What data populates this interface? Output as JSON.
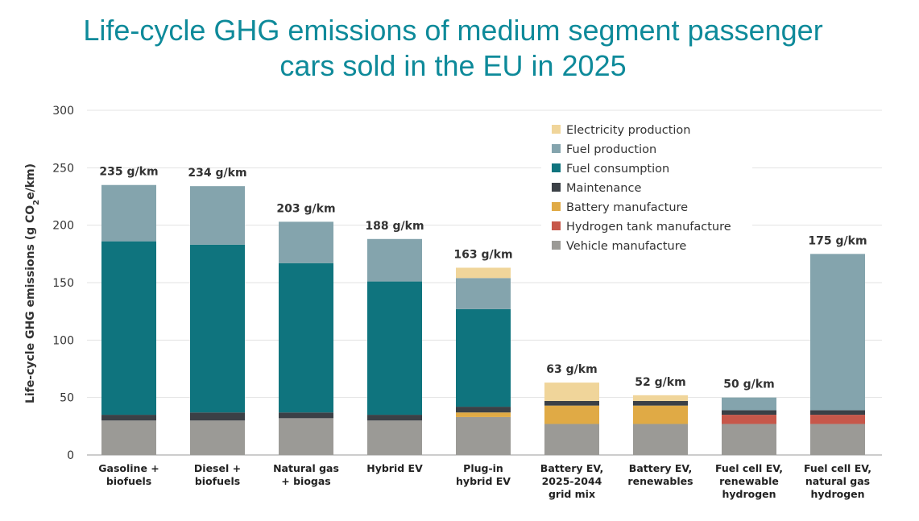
{
  "chart_data": {
    "type": "bar",
    "stacked": true,
    "title": "Life-cycle GHG emissions of medium segment passenger cars sold in the EU in 2025",
    "title_lines": [
      "Life-cycle GHG emissions of medium segment passenger",
      "cars sold in the EU in 2025"
    ],
    "ylabel": "Life-cycle GHG emissions (g CO2e/km)",
    "ylabel_parts": [
      "Life-cycle GHG emissions (g CO",
      "2",
      "e/km)"
    ],
    "ylim": [
      0,
      300
    ],
    "yticks": [
      0,
      50,
      100,
      150,
      200,
      250,
      300
    ],
    "grid": true,
    "legend_position": "top-right",
    "categories": [
      [
        "Gasoline +",
        "biofuels"
      ],
      [
        "Diesel +",
        "biofuels"
      ],
      [
        "Natural gas",
        "+ biogas"
      ],
      [
        "Hybrid EV"
      ],
      [
        "Plug-in",
        "hybrid EV"
      ],
      [
        "Battery EV,",
        "2025-2044",
        "grid mix"
      ],
      [
        "Battery EV,",
        "renewables"
      ],
      [
        "Fuel cell EV,",
        "renewable",
        "hydrogen"
      ],
      [
        "Fuel cell EV,",
        "natural gas",
        "hydrogen"
      ]
    ],
    "totals": [
      "235 g/km",
      "234 g/km",
      "203 g/km",
      "188 g/km",
      "163 g/km",
      "63 g/km",
      "52 g/km",
      "50 g/km",
      "175 g/km"
    ],
    "series": [
      {
        "name": "Vehicle manufacture",
        "color": "#9b9a96",
        "values": [
          30,
          30,
          32,
          30,
          33,
          27,
          27,
          27,
          27
        ]
      },
      {
        "name": "Hydrogen tank manufacture",
        "color": "#c7574a",
        "values": [
          0,
          0,
          0,
          0,
          0,
          0,
          0,
          8,
          8
        ]
      },
      {
        "name": "Battery manufacture",
        "color": "#e0aa45",
        "values": [
          0,
          0,
          0,
          0,
          4,
          16,
          16,
          0,
          0
        ]
      },
      {
        "name": "Maintenance",
        "color": "#3b4046",
        "values": [
          5,
          7,
          5,
          5,
          5,
          4,
          4,
          4,
          4
        ]
      },
      {
        "name": "Fuel consumption",
        "color": "#0f747e",
        "values": [
          151,
          146,
          130,
          116,
          85,
          0,
          0,
          0,
          0
        ]
      },
      {
        "name": "Fuel production",
        "color": "#84a4ad",
        "values": [
          49,
          51,
          36,
          37,
          27,
          0,
          0,
          11,
          136
        ]
      },
      {
        "name": "Electricity production",
        "color": "#f0d59a",
        "values": [
          0,
          0,
          0,
          0,
          9,
          16,
          5,
          0,
          0
        ]
      }
    ],
    "legend_order": [
      "Electricity production",
      "Fuel production",
      "Fuel consumption",
      "Maintenance",
      "Battery manufacture",
      "Hydrogen tank manufacture",
      "Vehicle manufacture"
    ],
    "colors": {
      "title": "#0e8a9a",
      "grid": "#e3e3e3",
      "axis": "#999999",
      "text": "#333333"
    }
  }
}
